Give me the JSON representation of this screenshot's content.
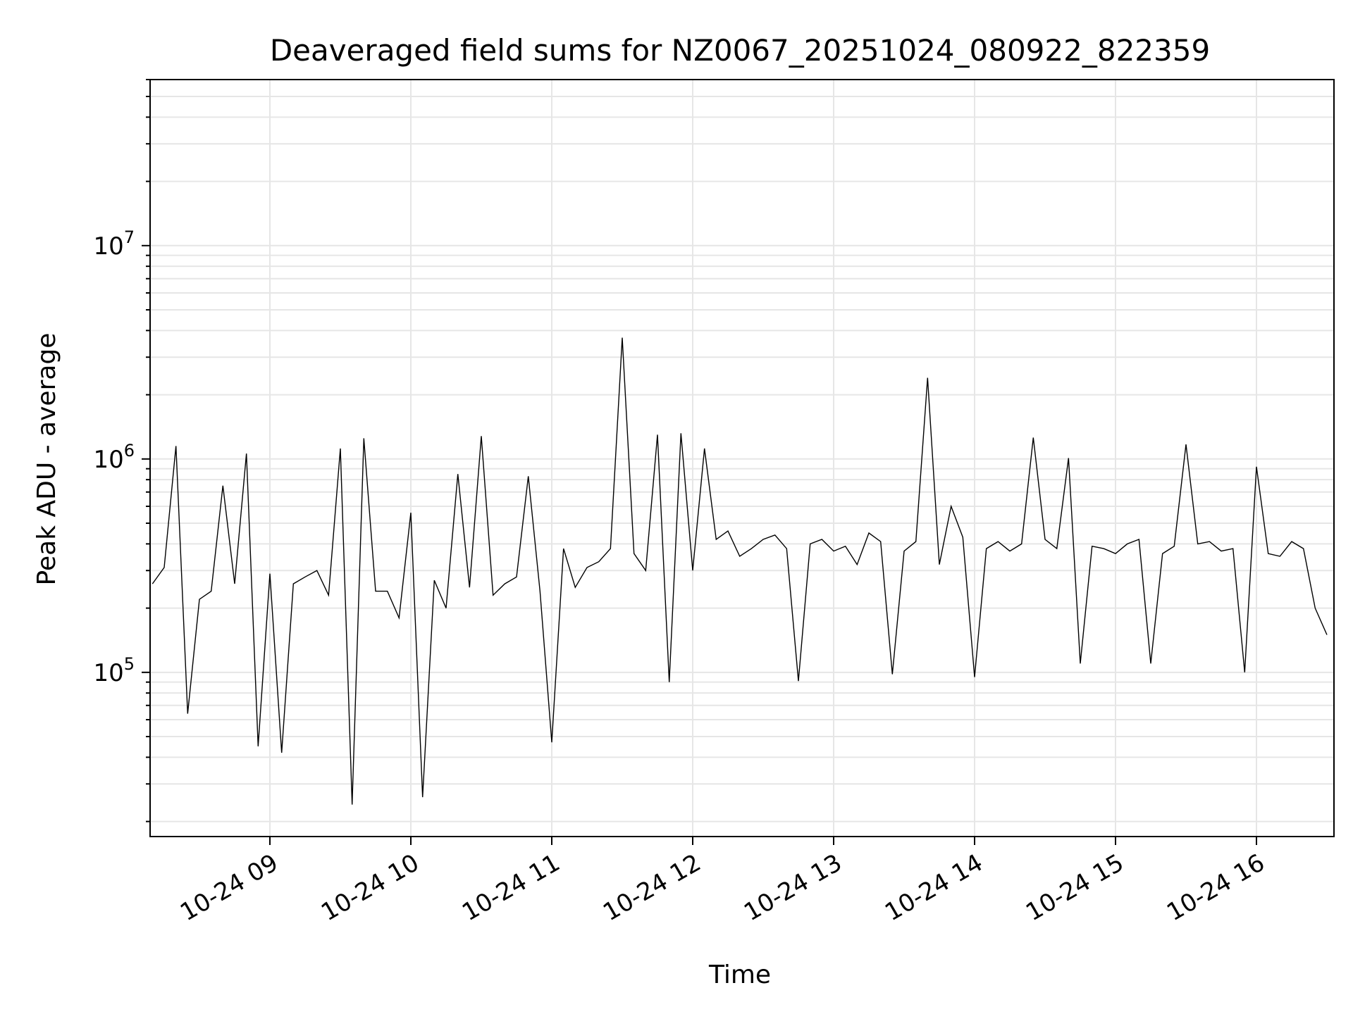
{
  "chart_data": {
    "type": "line",
    "title": "Deaveraged field sums for NZ0067_20251024_080922_822359",
    "xlabel": "Time",
    "ylabel": "Peak ADU - average",
    "yscale": "log",
    "xlim": [
      "2025-10-24 08:09",
      "2025-10-24 16:33"
    ],
    "ylim": [
      17000,
      60000000
    ],
    "grid": true,
    "line_color": "#000000",
    "x_ticks": [
      {
        "time": "2025-10-24 09:00",
        "label": "10-24 09"
      },
      {
        "time": "2025-10-24 10:00",
        "label": "10-24 10"
      },
      {
        "time": "2025-10-24 11:00",
        "label": "10-24 11"
      },
      {
        "time": "2025-10-24 12:00",
        "label": "10-24 12"
      },
      {
        "time": "2025-10-24 13:00",
        "label": "10-24 13"
      },
      {
        "time": "2025-10-24 14:00",
        "label": "10-24 14"
      },
      {
        "time": "2025-10-24 15:00",
        "label": "10-24 15"
      },
      {
        "time": "2025-10-24 16:00",
        "label": "10-24 16"
      }
    ],
    "y_ticks": [
      {
        "value": 100000,
        "base": "10",
        "exponent": "5"
      },
      {
        "value": 1000000,
        "base": "10",
        "exponent": "6"
      },
      {
        "value": 10000000,
        "base": "10",
        "exponent": "7"
      }
    ],
    "series": [
      {
        "x": [
          "2025-10-24 08:10",
          "2025-10-24 08:15",
          "2025-10-24 08:20",
          "2025-10-24 08:25",
          "2025-10-24 08:30",
          "2025-10-24 08:35",
          "2025-10-24 08:40",
          "2025-10-24 08:45",
          "2025-10-24 08:50",
          "2025-10-24 08:55",
          "2025-10-24 09:00",
          "2025-10-24 09:05",
          "2025-10-24 09:10",
          "2025-10-24 09:15",
          "2025-10-24 09:20",
          "2025-10-24 09:25",
          "2025-10-24 09:30",
          "2025-10-24 09:35",
          "2025-10-24 09:40",
          "2025-10-24 09:45",
          "2025-10-24 09:50",
          "2025-10-24 09:55",
          "2025-10-24 10:00",
          "2025-10-24 10:05",
          "2025-10-24 10:10",
          "2025-10-24 10:15",
          "2025-10-24 10:20",
          "2025-10-24 10:25",
          "2025-10-24 10:30",
          "2025-10-24 10:35",
          "2025-10-24 10:40",
          "2025-10-24 10:45",
          "2025-10-24 10:50",
          "2025-10-24 10:55",
          "2025-10-24 11:00",
          "2025-10-24 11:05",
          "2025-10-24 11:10",
          "2025-10-24 11:15",
          "2025-10-24 11:20",
          "2025-10-24 11:25",
          "2025-10-24 11:30",
          "2025-10-24 11:35",
          "2025-10-24 11:40",
          "2025-10-24 11:45",
          "2025-10-24 11:50",
          "2025-10-24 11:55",
          "2025-10-24 12:00",
          "2025-10-24 12:05",
          "2025-10-24 12:10",
          "2025-10-24 12:15",
          "2025-10-24 12:20",
          "2025-10-24 12:25",
          "2025-10-24 12:30",
          "2025-10-24 12:35",
          "2025-10-24 12:40",
          "2025-10-24 12:45",
          "2025-10-24 12:50",
          "2025-10-24 12:55",
          "2025-10-24 13:00",
          "2025-10-24 13:05",
          "2025-10-24 13:10",
          "2025-10-24 13:15",
          "2025-10-24 13:20",
          "2025-10-24 13:25",
          "2025-10-24 13:30",
          "2025-10-24 13:35",
          "2025-10-24 13:40",
          "2025-10-24 13:45",
          "2025-10-24 13:50",
          "2025-10-24 13:55",
          "2025-10-24 14:00",
          "2025-10-24 14:05",
          "2025-10-24 14:10",
          "2025-10-24 14:15",
          "2025-10-24 14:20",
          "2025-10-24 14:25",
          "2025-10-24 14:30",
          "2025-10-24 14:35",
          "2025-10-24 14:40",
          "2025-10-24 14:45",
          "2025-10-24 14:50",
          "2025-10-24 14:55",
          "2025-10-24 15:00",
          "2025-10-24 15:05",
          "2025-10-24 15:10",
          "2025-10-24 15:15",
          "2025-10-24 15:20",
          "2025-10-24 15:25",
          "2025-10-24 15:30",
          "2025-10-24 15:35",
          "2025-10-24 15:40",
          "2025-10-24 15:45",
          "2025-10-24 15:50",
          "2025-10-24 15:55",
          "2025-10-24 16:00",
          "2025-10-24 16:05",
          "2025-10-24 16:10",
          "2025-10-24 16:15",
          "2025-10-24 16:20",
          "2025-10-24 16:25",
          "2025-10-24 16:30"
        ],
        "y": [
          260000,
          310000,
          1150000,
          64000,
          220000,
          240000,
          750000,
          260000,
          1060000,
          45000,
          290000,
          42000,
          260000,
          280000,
          300000,
          230000,
          1120000,
          24000,
          1250000,
          240000,
          240000,
          180000,
          560000,
          26000,
          270000,
          200000,
          850000,
          250000,
          1280000,
          230000,
          260000,
          280000,
          830000,
          240000,
          47000,
          380000,
          250000,
          310000,
          330000,
          380000,
          3700000,
          360000,
          300000,
          1300000,
          90000,
          1320000,
          300000,
          1120000,
          420000,
          460000,
          350000,
          380000,
          420000,
          440000,
          380000,
          91000,
          400000,
          420000,
          370000,
          390000,
          320000,
          450000,
          410000,
          98000,
          370000,
          410000,
          2400000,
          320000,
          600000,
          430000,
          95000,
          380000,
          410000,
          370000,
          400000,
          1260000,
          420000,
          380000,
          1010000,
          110000,
          390000,
          380000,
          360000,
          400000,
          420000,
          110000,
          360000,
          390000,
          1170000,
          400000,
          410000,
          370000,
          380000,
          100000,
          920000,
          360000,
          350000,
          410000,
          380000,
          200000,
          150000
        ]
      }
    ]
  }
}
